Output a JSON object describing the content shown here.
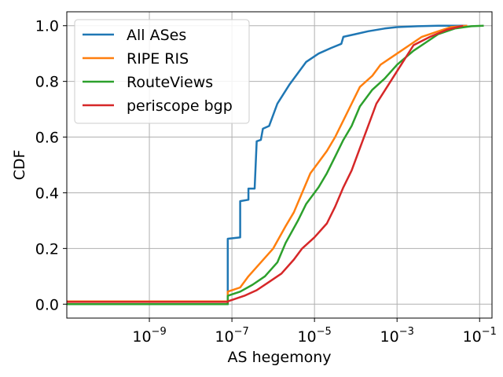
{
  "chart_data": {
    "type": "line",
    "title": "",
    "xlabel": "AS hegemony",
    "ylabel": "CDF",
    "xscale": "log",
    "xlim_exp": [
      -11,
      -0.7
    ],
    "ylim": [
      -0.05,
      1.05
    ],
    "x_ticks": [
      {
        "base": "10",
        "exp": "−9"
      },
      {
        "base": "10",
        "exp": "−7"
      },
      {
        "base": "10",
        "exp": "−5"
      },
      {
        "base": "10",
        "exp": "−3"
      },
      {
        "base": "10",
        "exp": "−1"
      }
    ],
    "x_tick_values_exp": [
      -9,
      -7,
      -5,
      -3,
      -1
    ],
    "y_ticks": [
      "0.0",
      "0.2",
      "0.4",
      "0.6",
      "0.8",
      "1.0"
    ],
    "y_tick_values": [
      0.0,
      0.2,
      0.4,
      0.6,
      0.8,
      1.0
    ],
    "grid": true,
    "legend_position": "top-left",
    "series": [
      {
        "name": "All ASes",
        "color": "#1f77b4",
        "points_log10x_y": [
          [
            -11,
            0.0
          ],
          [
            -7.1,
            0.0
          ],
          [
            -7.1,
            0.235
          ],
          [
            -6.8,
            0.24
          ],
          [
            -6.8,
            0.37
          ],
          [
            -6.6,
            0.375
          ],
          [
            -6.6,
            0.415
          ],
          [
            -6.45,
            0.415
          ],
          [
            -6.4,
            0.585
          ],
          [
            -6.3,
            0.59
          ],
          [
            -6.25,
            0.63
          ],
          [
            -6.1,
            0.64
          ],
          [
            -5.9,
            0.72
          ],
          [
            -5.6,
            0.79
          ],
          [
            -5.4,
            0.83
          ],
          [
            -5.2,
            0.87
          ],
          [
            -4.9,
            0.9
          ],
          [
            -4.6,
            0.92
          ],
          [
            -4.35,
            0.935
          ],
          [
            -4.3,
            0.96
          ],
          [
            -4.0,
            0.97
          ],
          [
            -3.7,
            0.98
          ],
          [
            -3.3,
            0.99
          ],
          [
            -3.0,
            0.995
          ],
          [
            -2.5,
            0.998
          ],
          [
            -2.0,
            1.0
          ],
          [
            -1.3,
            1.0
          ]
        ]
      },
      {
        "name": "RIPE RIS",
        "color": "#ff7f0e",
        "points_log10x_y": [
          [
            -11,
            0.01
          ],
          [
            -7.1,
            0.01
          ],
          [
            -7.1,
            0.045
          ],
          [
            -6.8,
            0.06
          ],
          [
            -6.6,
            0.1
          ],
          [
            -6.3,
            0.15
          ],
          [
            -6.0,
            0.2
          ],
          [
            -5.7,
            0.28
          ],
          [
            -5.5,
            0.33
          ],
          [
            -5.3,
            0.4
          ],
          [
            -5.1,
            0.47
          ],
          [
            -4.9,
            0.51
          ],
          [
            -4.7,
            0.55
          ],
          [
            -4.5,
            0.6
          ],
          [
            -4.3,
            0.66
          ],
          [
            -4.1,
            0.72
          ],
          [
            -3.9,
            0.78
          ],
          [
            -3.6,
            0.82
          ],
          [
            -3.4,
            0.86
          ],
          [
            -3.0,
            0.9
          ],
          [
            -2.7,
            0.93
          ],
          [
            -2.4,
            0.96
          ],
          [
            -2.0,
            0.98
          ],
          [
            -1.7,
            0.995
          ],
          [
            -1.3,
            1.0
          ]
        ]
      },
      {
        "name": "RouteViews",
        "color": "#2ca02c",
        "points_log10x_y": [
          [
            -11,
            0.0
          ],
          [
            -7.1,
            0.0
          ],
          [
            -7.1,
            0.03
          ],
          [
            -6.8,
            0.045
          ],
          [
            -6.5,
            0.07
          ],
          [
            -6.2,
            0.1
          ],
          [
            -5.9,
            0.15
          ],
          [
            -5.7,
            0.22
          ],
          [
            -5.4,
            0.3
          ],
          [
            -5.2,
            0.36
          ],
          [
            -4.9,
            0.42
          ],
          [
            -4.7,
            0.47
          ],
          [
            -4.5,
            0.53
          ],
          [
            -4.3,
            0.59
          ],
          [
            -4.1,
            0.64
          ],
          [
            -3.9,
            0.71
          ],
          [
            -3.6,
            0.77
          ],
          [
            -3.3,
            0.81
          ],
          [
            -3.0,
            0.86
          ],
          [
            -2.6,
            0.91
          ],
          [
            -2.3,
            0.94
          ],
          [
            -2.0,
            0.97
          ],
          [
            -1.6,
            0.99
          ],
          [
            -1.2,
            0.998
          ],
          [
            -0.9,
            1.0
          ]
        ]
      },
      {
        "name": "periscope bgp",
        "color": "#d62728",
        "points_log10x_y": [
          [
            -11,
            0.008
          ],
          [
            -7.1,
            0.008
          ],
          [
            -7.1,
            0.01
          ],
          [
            -6.7,
            0.03
          ],
          [
            -6.4,
            0.05
          ],
          [
            -6.1,
            0.08
          ],
          [
            -5.8,
            0.11
          ],
          [
            -5.5,
            0.16
          ],
          [
            -5.3,
            0.2
          ],
          [
            -5.0,
            0.24
          ],
          [
            -4.7,
            0.29
          ],
          [
            -4.5,
            0.35
          ],
          [
            -4.3,
            0.42
          ],
          [
            -4.1,
            0.48
          ],
          [
            -3.9,
            0.56
          ],
          [
            -3.7,
            0.64
          ],
          [
            -3.5,
            0.72
          ],
          [
            -3.2,
            0.79
          ],
          [
            -2.9,
            0.86
          ],
          [
            -2.6,
            0.93
          ],
          [
            -2.2,
            0.96
          ],
          [
            -1.8,
            0.985
          ],
          [
            -1.4,
            1.0
          ]
        ]
      }
    ]
  }
}
